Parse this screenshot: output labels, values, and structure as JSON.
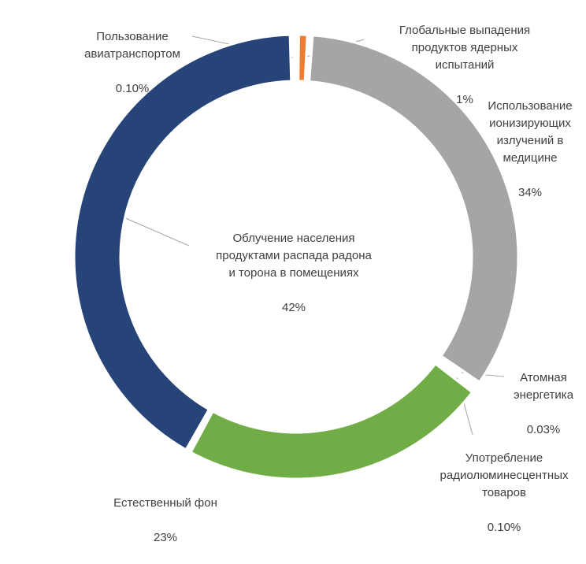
{
  "chart_data": {
    "type": "pie",
    "donut": true,
    "title": "",
    "slices": [
      {
        "label": "Облучение населения\nпродуктами распада радона\nи торона в помещениях",
        "value": 42,
        "display": "42%",
        "color": "#264478"
      },
      {
        "label": "Пользование\nавиатранспортом",
        "value": 0.1,
        "display": "0.10%",
        "color": "#264478"
      },
      {
        "label": "Глобальные выпадения\nпродуктов ядерных\nиспытаний",
        "value": 1,
        "display": "1%",
        "color": "#ed7d31"
      },
      {
        "label": "Использование\nионизирующих\nизлучений в\nмедицине",
        "value": 34,
        "display": "34%",
        "color": "#a5a5a5"
      },
      {
        "label": "Атомная\nэнергетика",
        "value": 0.03,
        "display": "0.03%",
        "color": "#a5a5a5"
      },
      {
        "label": "Употребление\nрадиолюминесцентных\nтоваров",
        "value": 0.1,
        "display": "0.10%",
        "color": "#a5a5a5"
      },
      {
        "label": "Естественный фон",
        "value": 23,
        "display": "23%",
        "color": "#70ad47"
      }
    ]
  }
}
